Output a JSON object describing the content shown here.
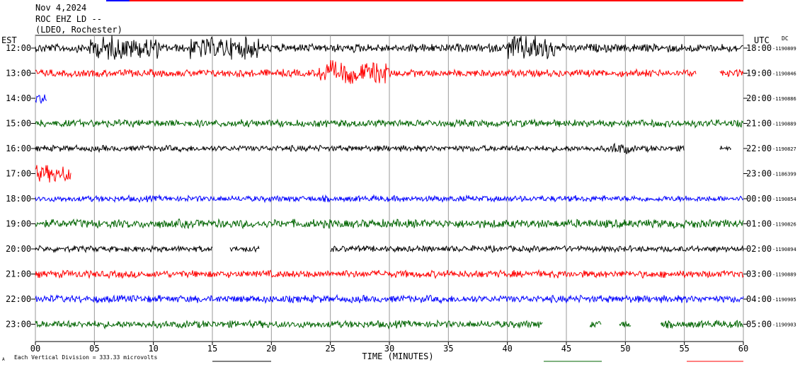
{
  "header": {
    "date": "Nov 4,2024",
    "station": "ROC EHZ LD --",
    "network": "(LDEO, Rochester)"
  },
  "left_zone": "EST",
  "right_zone": "UTC",
  "dc_label": "DC",
  "footer": {
    "scale_note": "Each Vertical Division =  333.33 microvolts",
    "corner_mark": "A"
  },
  "colors": {
    "black": "#000000",
    "red": "#ff0000",
    "blue": "#0000ff",
    "green": "#006400"
  },
  "chart_data": {
    "type": "line",
    "title": "",
    "xlabel": "TIME (MINUTES)",
    "ylabel": "",
    "xlim": [
      0,
      60
    ],
    "x_ticks": [
      "00",
      "05",
      "10",
      "15",
      "20",
      "25",
      "30",
      "35",
      "40",
      "45",
      "50",
      "55",
      "60"
    ],
    "rows": [
      {
        "est": "12:00",
        "utc": "18:00",
        "dc": "-1190809",
        "color": "black",
        "amp": 7,
        "segments": [
          [
            0,
            60
          ]
        ],
        "bursts": [
          [
            7.5,
            3,
            2.8
          ],
          [
            16,
            3,
            2.5
          ],
          [
            42,
            2,
            3
          ]
        ]
      },
      {
        "est": "13:00",
        "utc": "19:00",
        "dc": "-1190846",
        "color": "red",
        "amp": 6,
        "segments": [
          [
            0,
            56
          ],
          [
            58,
            60
          ]
        ],
        "bursts": [
          [
            27,
            3,
            3.2
          ]
        ]
      },
      {
        "est": "14:00",
        "utc": "20:00",
        "dc": "-1190886",
        "color": "blue",
        "amp": 8,
        "segments": [
          [
            0,
            1
          ]
        ],
        "bursts": []
      },
      {
        "est": "15:00",
        "utc": "21:00",
        "dc": "-1190889",
        "color": "green",
        "amp": 6,
        "segments": [
          [
            0,
            60
          ]
        ],
        "bursts": []
      },
      {
        "est": "16:00",
        "utc": "22:00",
        "dc": "-1190827",
        "color": "black",
        "amp": 5,
        "segments": [
          [
            0,
            55
          ],
          [
            58,
            59
          ]
        ],
        "bursts": [
          [
            49.5,
            0.8,
            2
          ]
        ]
      },
      {
        "est": "17:00",
        "utc": "23:00",
        "dc": "-1186399",
        "color": "red",
        "amp": 14,
        "segments": [
          [
            0,
            3
          ]
        ],
        "bursts": []
      },
      {
        "est": "18:00",
        "utc": "00:00",
        "dc": "-1190854",
        "color": "blue",
        "amp": 5,
        "segments": [
          [
            0,
            60
          ]
        ],
        "bursts": []
      },
      {
        "est": "19:00",
        "utc": "01:00",
        "dc": "-1190826",
        "color": "green",
        "amp": 7,
        "segments": [
          [
            0,
            60
          ]
        ],
        "bursts": []
      },
      {
        "est": "20:00",
        "utc": "02:00",
        "dc": "-1190894",
        "color": "black",
        "amp": 5,
        "segments": [
          [
            0,
            15
          ],
          [
            16.5,
            19
          ],
          [
            25,
            60
          ]
        ],
        "bursts": []
      },
      {
        "est": "21:00",
        "utc": "03:00",
        "dc": "-1190889",
        "color": "red",
        "amp": 6,
        "segments": [
          [
            0,
            60
          ]
        ],
        "bursts": []
      },
      {
        "est": "22:00",
        "utc": "04:00",
        "dc": "-1190905",
        "color": "blue",
        "amp": 6,
        "segments": [
          [
            0,
            60
          ]
        ],
        "bursts": []
      },
      {
        "est": "23:00",
        "utc": "05:00",
        "dc": "-1190903",
        "color": "green",
        "amp": 6,
        "segments": [
          [
            0,
            43
          ],
          [
            47,
            48
          ],
          [
            49.5,
            50.5
          ],
          [
            53,
            60
          ]
        ],
        "bursts": []
      }
    ]
  }
}
